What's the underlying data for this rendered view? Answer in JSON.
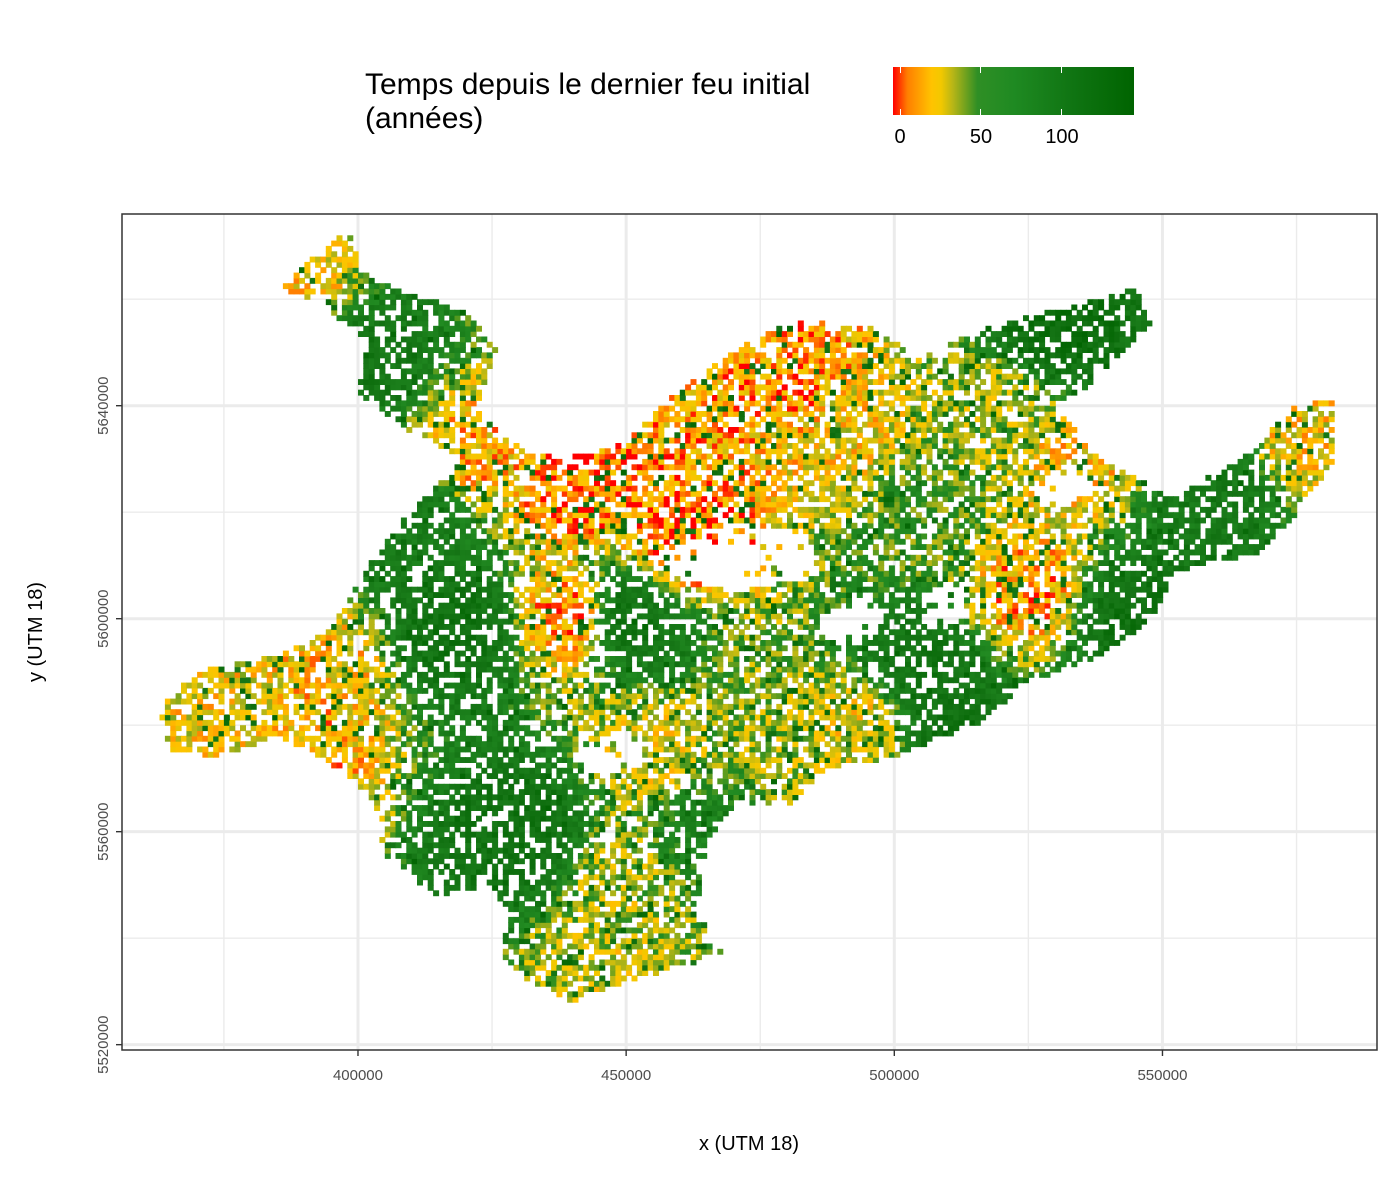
{
  "legend": {
    "title": "Temps depuis le dernier feu initial\n(années)",
    "ticks": [
      {
        "label": "0",
        "value": 0
      },
      {
        "label": "50",
        "value": 50
      },
      {
        "label": "100",
        "value": 100
      }
    ],
    "range": [
      -3,
      145
    ],
    "colors": [
      "#ff0000",
      "#ff7f00",
      "#ffc300",
      "#b5b517",
      "#228b22",
      "#006400"
    ]
  },
  "chart_data": {
    "type": "heatmap",
    "xlabel": "x (UTM 18)",
    "ylabel": "y (UTM 18)",
    "xlim": [
      356000,
      590000
    ],
    "ylim": [
      5519000,
      5676000
    ],
    "x_ticks": [
      {
        "label": "400000",
        "value": 400000
      },
      {
        "label": "450000",
        "value": 450000
      },
      {
        "label": "500000",
        "value": 500000
      },
      {
        "label": "550000",
        "value": 550000
      }
    ],
    "y_ticks": [
      {
        "label": "5520000",
        "value": 5520000
      },
      {
        "label": "5560000",
        "value": 5560000
      },
      {
        "label": "5600000",
        "value": 5600000
      },
      {
        "label": "5640000",
        "value": 5640000
      }
    ],
    "grid": true,
    "regions": [
      {
        "x": 450000,
        "y": 5600000,
        "value": 110
      },
      {
        "x": 418000,
        "y": 5598000,
        "value": 115
      },
      {
        "x": 390000,
        "y": 5575000,
        "value": 20
      },
      {
        "x": 395000,
        "y": 5590000,
        "value": 25
      },
      {
        "x": 378000,
        "y": 5582000,
        "value": 30
      },
      {
        "x": 440000,
        "y": 5625000,
        "value": 10
      },
      {
        "x": 420000,
        "y": 5630000,
        "value": 20
      },
      {
        "x": 440000,
        "y": 5600000,
        "value": 12
      },
      {
        "x": 460000,
        "y": 5615000,
        "value": 8
      },
      {
        "x": 455000,
        "y": 5575000,
        "value": 35
      },
      {
        "x": 450000,
        "y": 5550000,
        "value": 40
      },
      {
        "x": 445000,
        "y": 5535000,
        "value": 38
      },
      {
        "x": 480000,
        "y": 5645000,
        "value": 15
      },
      {
        "x": 490000,
        "y": 5635000,
        "value": 28
      },
      {
        "x": 505000,
        "y": 5620000,
        "value": 60
      },
      {
        "x": 520000,
        "y": 5640000,
        "value": 42
      },
      {
        "x": 525000,
        "y": 5605000,
        "value": 18
      },
      {
        "x": 535000,
        "y": 5630000,
        "value": 25
      },
      {
        "x": 560000,
        "y": 5625000,
        "value": 100
      },
      {
        "x": 575000,
        "y": 5635000,
        "value": 28
      },
      {
        "x": 505000,
        "y": 5590000,
        "value": 110
      },
      {
        "x": 495000,
        "y": 5580000,
        "value": 30
      },
      {
        "x": 485000,
        "y": 5570000,
        "value": 40
      },
      {
        "x": 510000,
        "y": 5575000,
        "value": 120
      },
      {
        "x": 400000,
        "y": 5650000,
        "value": 105
      },
      {
        "x": 390000,
        "y": 5660000,
        "value": 25
      },
      {
        "x": 412000,
        "y": 5620000,
        "value": 95
      },
      {
        "x": 430000,
        "y": 5560000,
        "value": 115
      },
      {
        "x": 465000,
        "y": 5560000,
        "value": 80
      },
      {
        "x": 530000,
        "y": 5655000,
        "value": 125
      },
      {
        "x": 545000,
        "y": 5600000,
        "value": 115
      }
    ]
  }
}
